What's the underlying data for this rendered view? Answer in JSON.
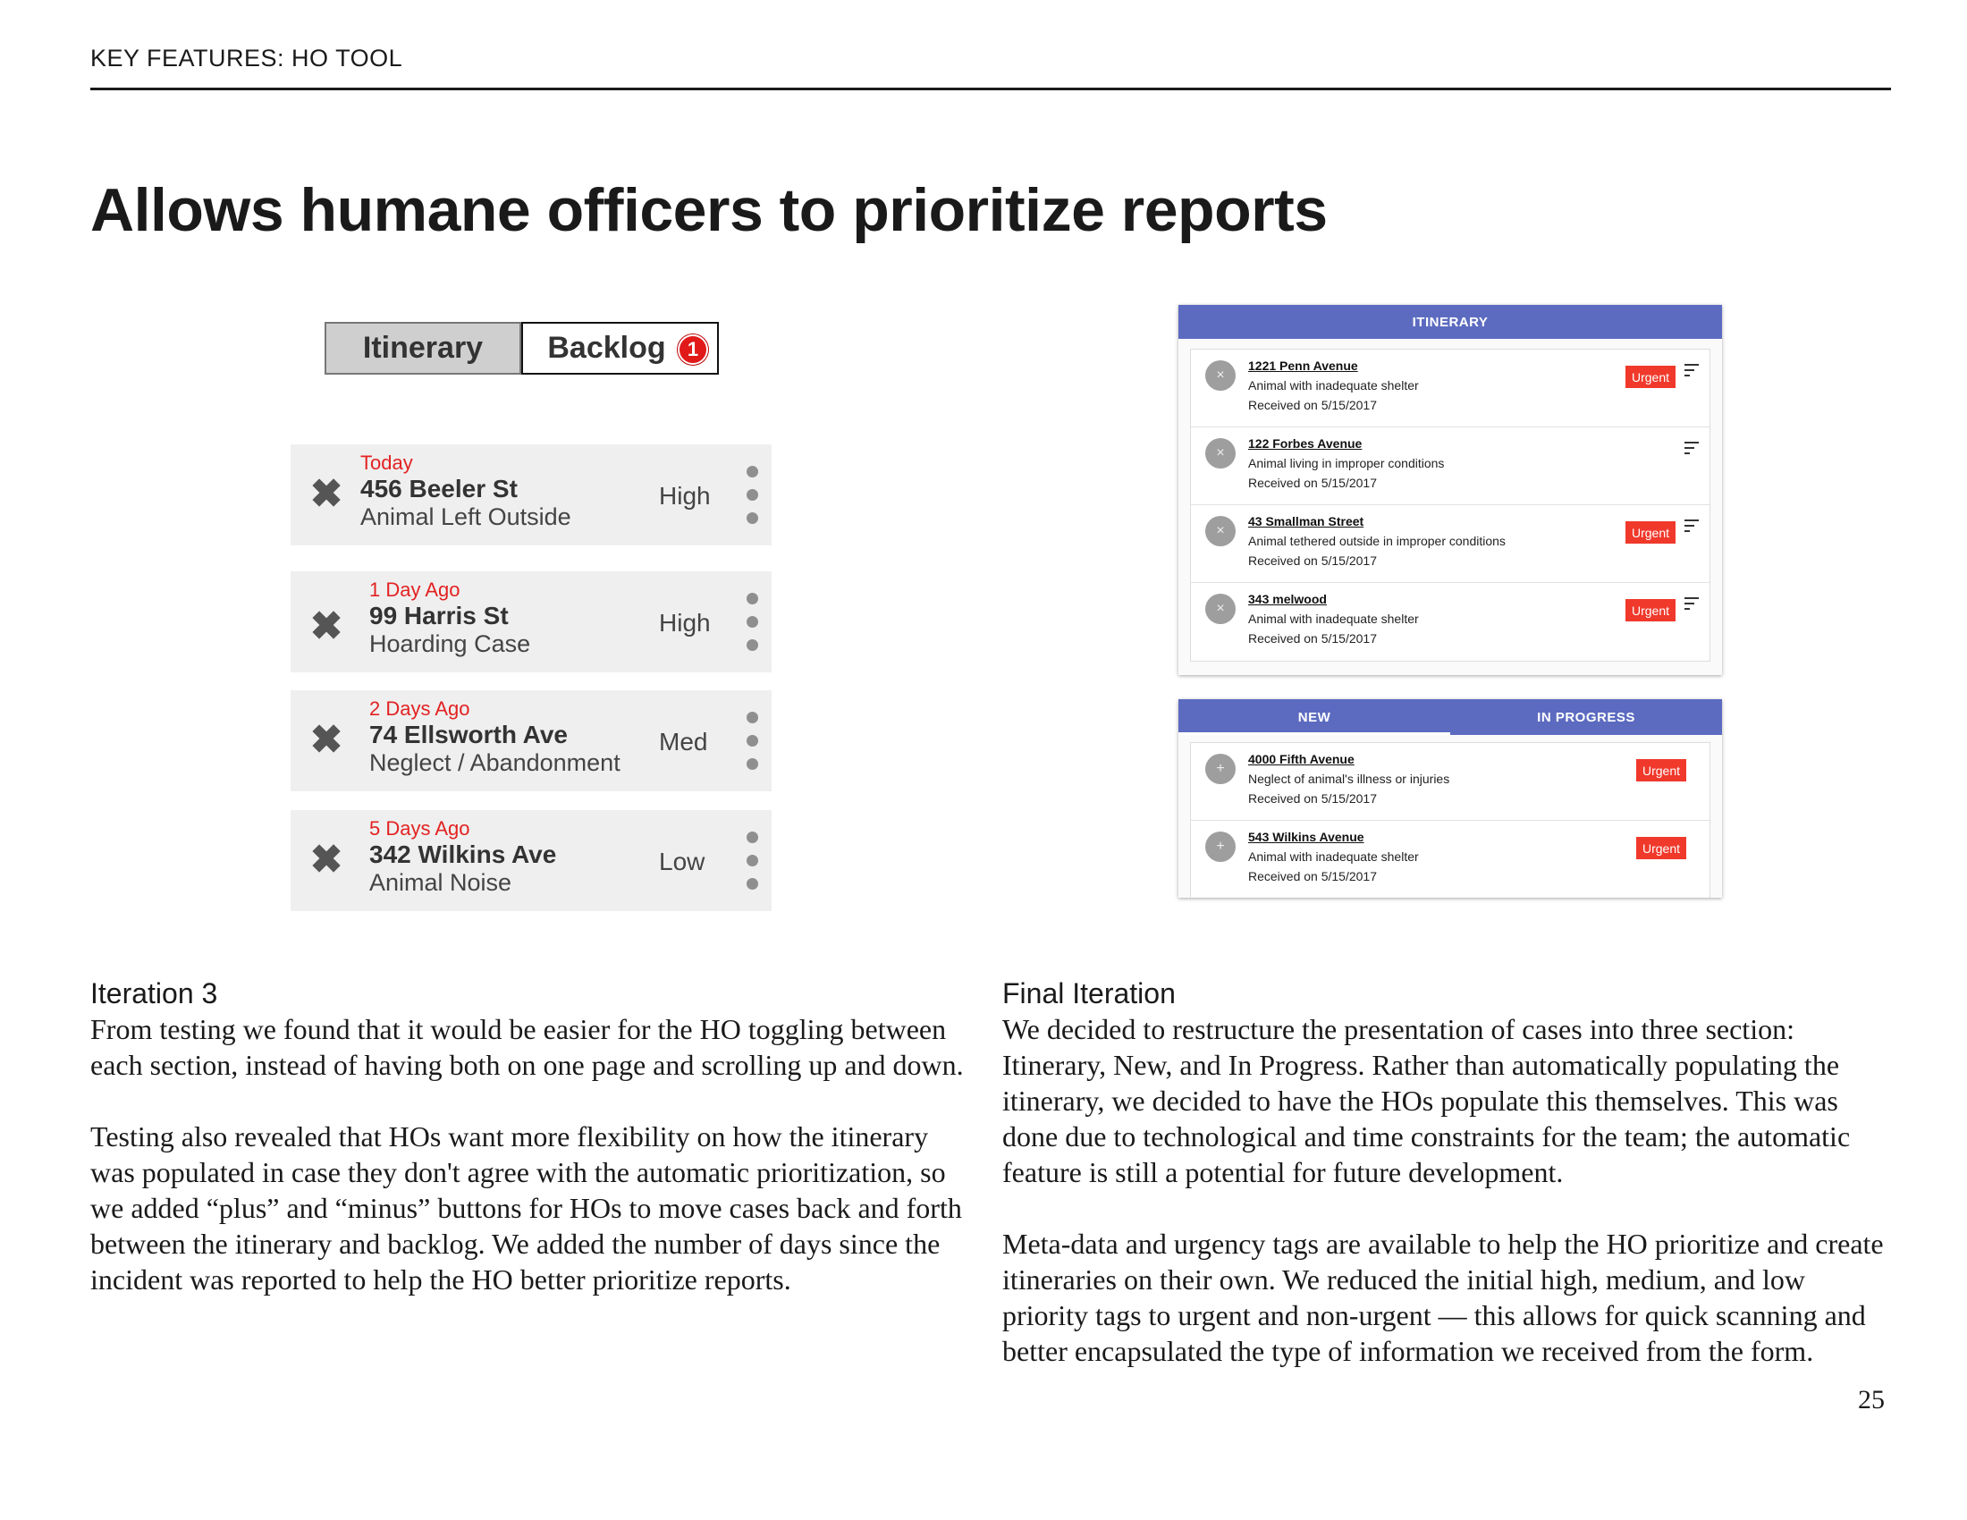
{
  "header": {
    "label": "KEY FEATURES: HO TOOL"
  },
  "title": "Allows humane officers to prioritize reports",
  "iteration3_mockup": {
    "tabs": {
      "itinerary": "Itinerary",
      "backlog": "Backlog",
      "backlog_badge": "1"
    },
    "cases": [
      {
        "when": "Today",
        "address": "456 Beeler St",
        "type": "Animal Left Outside",
        "priority": "High"
      },
      {
        "when": "1 Day Ago",
        "address": "99 Harris St",
        "type": "Hoarding Case",
        "priority": "High"
      },
      {
        "when": "2 Days Ago",
        "address": "74 Ellsworth Ave",
        "type": "Neglect / Abandonment",
        "priority": "Med"
      },
      {
        "when": "5 Days Ago",
        "address": "342 Wilkins Ave",
        "type": "Animal Noise",
        "priority": "Low"
      }
    ],
    "remove_glyph": "✖"
  },
  "final_mockup": {
    "itinerary_header": "ITINERARY",
    "itinerary": [
      {
        "address": "1221 Penn Avenue",
        "description": "Animal with inadequate shelter",
        "received": "Received on 5/15/2017",
        "tag": "Urgent"
      },
      {
        "address": "122 Forbes Avenue",
        "description": "Animal living in improper conditions",
        "received": "Received on 5/15/2017",
        "tag": ""
      },
      {
        "address": "43 Smallman Street",
        "description": "Animal tethered outside in improper conditions",
        "received": "Received on 5/15/2017",
        "tag": "Urgent"
      },
      {
        "address": "343 melwood",
        "description": "Animal with inadequate shelter",
        "received": "Received on 5/15/2017",
        "tag": "Urgent"
      }
    ],
    "list_tabs": {
      "new": "NEW",
      "in_progress": "IN PROGRESS"
    },
    "new_list": [
      {
        "address": "4000 Fifth Avenue",
        "description": "Neglect of animal's illness or injuries",
        "received": "Received on 5/15/2017",
        "tag": "Urgent"
      },
      {
        "address": "543 Wilkins Avenue",
        "description": "Animal with inadequate shelter",
        "received": "Received on 5/15/2017",
        "tag": "Urgent"
      }
    ],
    "remove_glyph": "×",
    "add_glyph": "+"
  },
  "iteration3_text": {
    "heading": "Iteration 3",
    "paragraphs": [
      "From testing we found that it would be easier for the HO toggling between each section, instead of having both on one page and scrolling up and down.",
      "Testing also revealed that HOs want more flexibility on how the itinerary was populated in case they don't agree with the automatic prioritization, so we added “plus” and “minus” buttons for HOs to move cases back and forth between the itinerary and backlog. We added the number of days since the incident was reported to help the HO better prioritize reports."
    ]
  },
  "final_text": {
    "heading": "Final Iteration",
    "paragraphs": [
      "We decided to restructure the presentation of cases into three section: Itinerary, New, and In Progress. Rather than automatically populating the itinerary, we decided to have the HOs populate this themselves. This was done due to technological and time constraints for the team; the automatic feature is still a potential for future development.",
      "Meta-data and urgency tags are available to help the HO prioritize and create itineraries on their own. We reduced the initial high, medium, and low priority tags to urgent and non-urgent — this allows for quick scanning and better encapsulated the type of information we received from the form."
    ]
  },
  "page_number": "25",
  "colors": {
    "accent_bar": "#5c6bc0",
    "urgent_tag": "#f0392b",
    "date_red": "#e32222",
    "badge_red": "#e11919"
  }
}
